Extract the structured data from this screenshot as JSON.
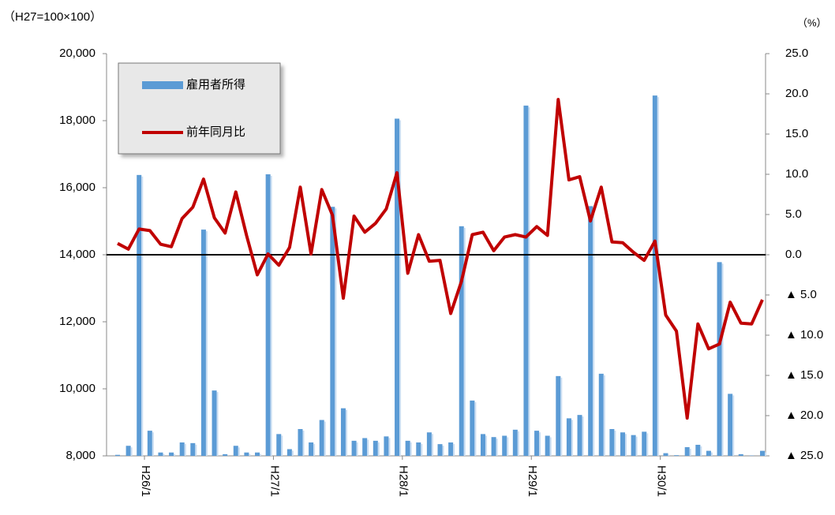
{
  "chart_data": {
    "type": "bar-line",
    "y_axis_label": "（H27=100×100）",
    "y2_axis_label": "（%）",
    "categories": [
      null,
      null,
      null,
      "H26/1",
      null,
      null,
      null,
      null,
      null,
      null,
      null,
      null,
      null,
      null,
      null,
      "H27/1",
      null,
      null,
      null,
      null,
      null,
      null,
      null,
      null,
      null,
      null,
      null,
      "H28/1",
      null,
      null,
      null,
      null,
      null,
      null,
      null,
      null,
      null,
      null,
      null,
      "H29/1",
      null,
      null,
      null,
      null,
      null,
      null,
      null,
      null,
      null,
      null,
      null,
      "H30/1",
      null,
      null,
      null,
      null,
      null,
      null,
      null,
      null,
      null
    ],
    "series": [
      {
        "name": "雇用者所得",
        "type": "bar",
        "color": "#5b9bd5",
        "values": [
          8030,
          8300,
          16380,
          8750,
          8100,
          8100,
          8400,
          8380,
          14750,
          9950,
          8050,
          8300,
          8100,
          8100,
          16400,
          8650,
          8200,
          8800,
          8400,
          9070,
          15430,
          9420,
          8450,
          8530,
          8450,
          8580,
          18060,
          8450,
          8400,
          8700,
          8350,
          8400,
          14850,
          9650,
          8650,
          8560,
          8600,
          8780,
          18450,
          8750,
          8600,
          10380,
          9120,
          9220,
          15450,
          10450,
          8800,
          8700,
          8620,
          8720,
          18750,
          8080,
          8020,
          8260,
          8330,
          8150,
          13780,
          9850,
          8050,
          8010,
          8150
        ]
      },
      {
        "name": "前年同月比",
        "type": "line",
        "axis": "y2",
        "color": "#c00000",
        "values": [
          1.4,
          0.7,
          3.2,
          3.0,
          1.3,
          1.0,
          4.5,
          5.9,
          9.4,
          4.6,
          2.7,
          7.8,
          2.4,
          -2.5,
          0.1,
          -1.3,
          0.9,
          8.4,
          0.1,
          8.1,
          4.9,
          -5.4,
          4.8,
          2.8,
          3.9,
          5.7,
          10.2,
          -2.3,
          2.5,
          -0.8,
          -0.7,
          -7.3,
          -3.3,
          2.5,
          2.8,
          0.5,
          2.2,
          2.5,
          2.2,
          3.5,
          2.4,
          19.3,
          9.3,
          9.7,
          4.2,
          8.4,
          1.6,
          1.5,
          0.3,
          -0.7,
          1.7,
          -7.5,
          -9.5,
          -20.3,
          -8.6,
          -11.7,
          -11.1,
          -5.9,
          -8.5,
          -8.6,
          -5.6
        ]
      }
    ],
    "ylim": [
      8000,
      20000
    ],
    "yticks": [
      {
        "value": 8000,
        "label": "8,000"
      },
      {
        "value": 10000,
        "label": "10,000"
      },
      {
        "value": 12000,
        "label": "12,000"
      },
      {
        "value": 14000,
        "label": "14,000"
      },
      {
        "value": 16000,
        "label": "16,000"
      },
      {
        "value": 18000,
        "label": "18,000"
      },
      {
        "value": 20000,
        "label": "20,000"
      }
    ],
    "y2lim": [
      -25,
      25
    ],
    "y2ticks": [
      {
        "value": -25,
        "label": "▲ 25.0"
      },
      {
        "value": -20,
        "label": "▲ 20.0"
      },
      {
        "value": -15,
        "label": "▲ 15.0"
      },
      {
        "value": -10,
        "label": "▲ 10.0"
      },
      {
        "value": -5,
        "label": "▲ 5.0"
      },
      {
        "value": 0,
        "label": "0.0"
      },
      {
        "value": 5,
        "label": "5.0"
      },
      {
        "value": 10,
        "label": "10.0"
      },
      {
        "value": 15,
        "label": "15.0"
      },
      {
        "value": 20,
        "label": "20.0"
      },
      {
        "value": 25,
        "label": "25.0"
      }
    ],
    "legend": "upper left"
  }
}
